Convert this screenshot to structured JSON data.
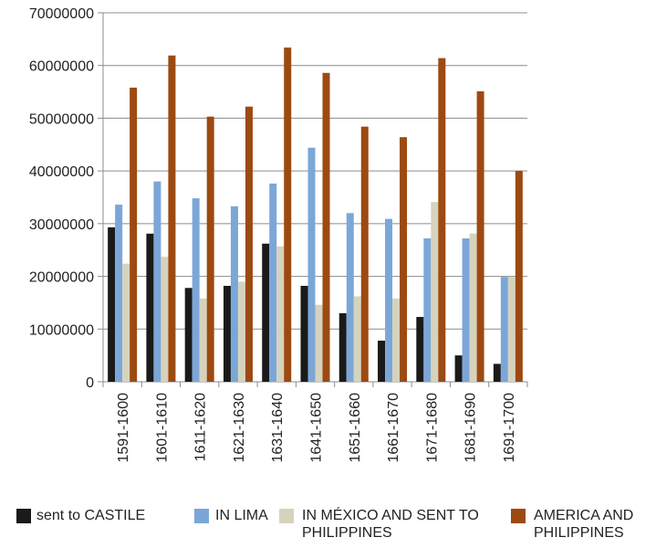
{
  "chart_data": {
    "type": "bar",
    "categories": [
      "1591-1600",
      "1601-1610",
      "1611-1620",
      "1621-1630",
      "1631-1640",
      "1641-1650",
      "1651-1660",
      "1661-1670",
      "1671-1680",
      "1681-1690",
      "1691-1700"
    ],
    "series": [
      {
        "name": "sent to CASTILE",
        "color": "#1a1a1a",
        "values": [
          29300000,
          28100000,
          17800000,
          18200000,
          26200000,
          18200000,
          13000000,
          7800000,
          12300000,
          5000000,
          3400000
        ]
      },
      {
        "name": "IN LIMA",
        "color": "#7ba7d8",
        "values": [
          33600000,
          38000000,
          34800000,
          33300000,
          37600000,
          44400000,
          32000000,
          30900000,
          27200000,
          27200000,
          19900000
        ]
      },
      {
        "name": "IN MÉXICO AND SENT TO PHILIPPINES",
        "color": "#d6d3bd",
        "values": [
          22400000,
          23700000,
          15800000,
          19000000,
          25700000,
          14600000,
          16200000,
          15800000,
          34100000,
          28100000,
          19900000
        ]
      },
      {
        "name": "AMERICA AND PHILIPPINES",
        "color": "#9c4a12",
        "values": [
          55800000,
          61900000,
          50300000,
          52200000,
          63400000,
          58600000,
          48400000,
          46400000,
          61400000,
          55100000,
          40000000
        ]
      }
    ],
    "ylim": [
      0,
      70000000
    ],
    "yticks": [
      0,
      10000000,
      20000000,
      30000000,
      40000000,
      50000000,
      60000000,
      70000000
    ],
    "grid": true
  }
}
